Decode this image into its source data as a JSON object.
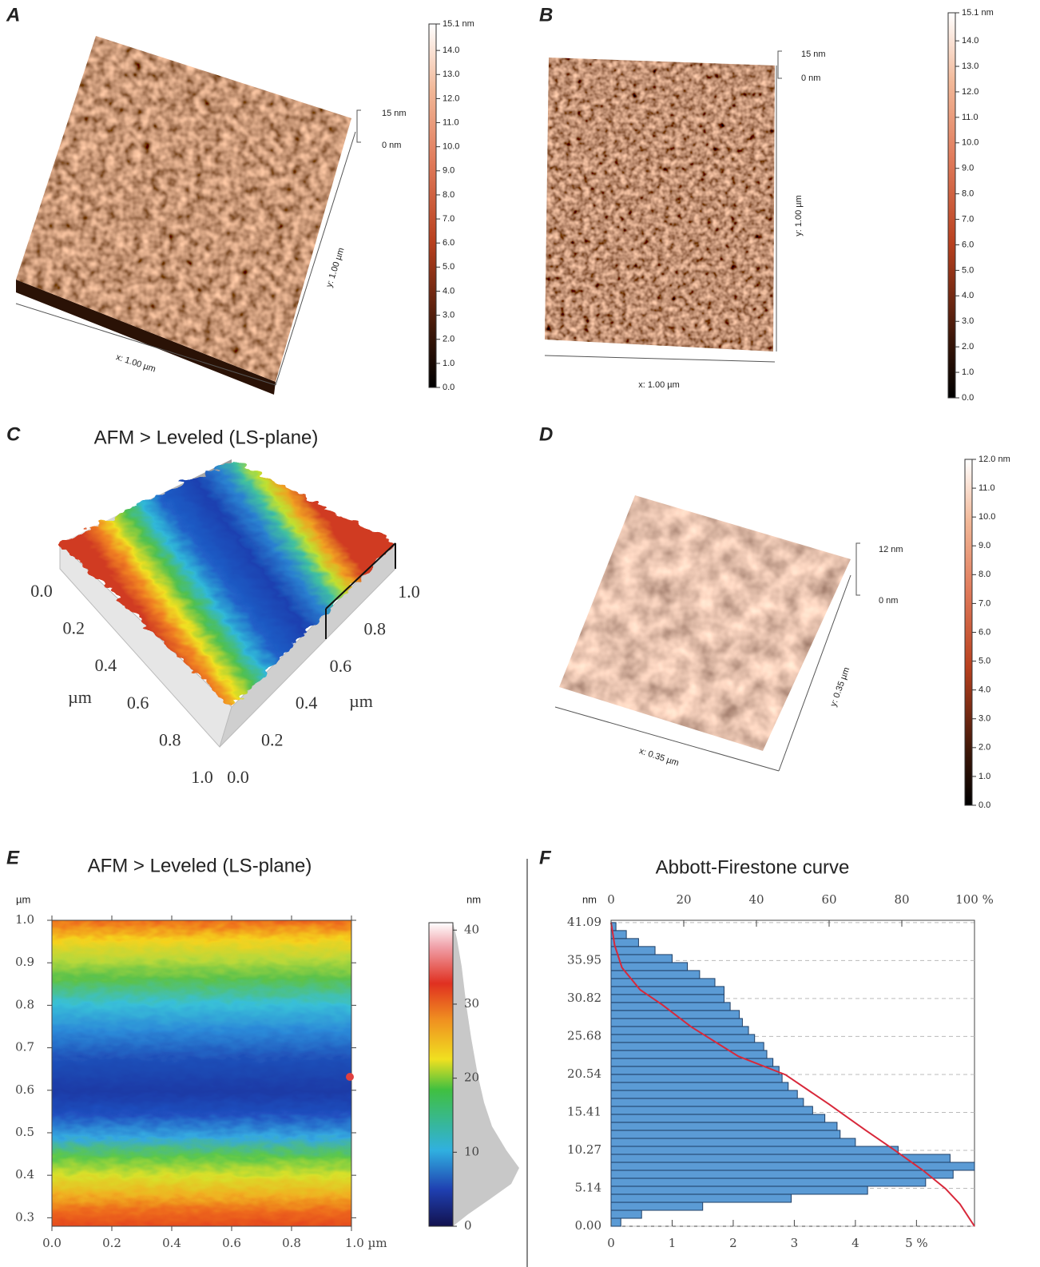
{
  "panels": {
    "A": {
      "label": "A",
      "axis_x": "x: 1.00 µm",
      "axis_y": "y: 1.00 µm",
      "scale_top": "15 nm",
      "scale_bottom": "0 nm",
      "colorbar": {
        "ticks": [
          {
            "value": 15.1,
            "label": "15.1 nm"
          },
          {
            "value": 14,
            "label": "14.0"
          },
          {
            "value": 13,
            "label": "13.0"
          },
          {
            "value": 12,
            "label": "12.0"
          },
          {
            "value": 11,
            "label": "11.0"
          },
          {
            "value": 10,
            "label": "10.0"
          },
          {
            "value": 9,
            "label": "9.0"
          },
          {
            "value": 8,
            "label": "8.0"
          },
          {
            "value": 7,
            "label": "7.0"
          },
          {
            "value": 6,
            "label": "6.0"
          },
          {
            "value": 5,
            "label": "5.0"
          },
          {
            "value": 4,
            "label": "4.0"
          },
          {
            "value": 3,
            "label": "3.0"
          },
          {
            "value": 2,
            "label": "2.0"
          },
          {
            "value": 1,
            "label": "1.0"
          },
          {
            "value": 0,
            "label": "0.0"
          }
        ]
      }
    },
    "B": {
      "label": "B",
      "axis_x": "x: 1.00 µm",
      "axis_y": "y: 1.00 µm",
      "scale_top": "15 nm",
      "scale_bottom": "0 nm",
      "colorbar": {
        "ticks": [
          {
            "value": 15.1,
            "label": "15.1 nm"
          },
          {
            "value": 14,
            "label": "14.0"
          },
          {
            "value": 13,
            "label": "13.0"
          },
          {
            "value": 12,
            "label": "12.0"
          },
          {
            "value": 11,
            "label": "11.0"
          },
          {
            "value": 10,
            "label": "10.0"
          },
          {
            "value": 9,
            "label": "9.0"
          },
          {
            "value": 8,
            "label": "8.0"
          },
          {
            "value": 7,
            "label": "7.0"
          },
          {
            "value": 6,
            "label": "6.0"
          },
          {
            "value": 5,
            "label": "5.0"
          },
          {
            "value": 4,
            "label": "4.0"
          },
          {
            "value": 3,
            "label": "3.0"
          },
          {
            "value": 2,
            "label": "2.0"
          },
          {
            "value": 1,
            "label": "1.0"
          },
          {
            "value": 0,
            "label": "0.0"
          }
        ]
      }
    },
    "C": {
      "label": "C",
      "title": "AFM > Leveled (LS-plane)",
      "left_axis": [
        "0.0",
        "0.2",
        "0.4",
        "0.6",
        "0.8",
        "1.0"
      ],
      "left_unit": "µm",
      "right_axis": [
        "0.0",
        "0.2",
        "0.4",
        "0.6",
        "0.8",
        "1.0"
      ],
      "right_unit": "µm"
    },
    "D": {
      "label": "D",
      "axis_x": "x: 0.35 µm",
      "axis_y": "y: 0.35 µm",
      "scale_top": "12 nm",
      "scale_bottom": "0 nm",
      "colorbar": {
        "ticks": [
          {
            "value": 12,
            "label": "12.0 nm"
          },
          {
            "value": 11,
            "label": "11.0"
          },
          {
            "value": 10,
            "label": "10.0"
          },
          {
            "value": 9,
            "label": "9.0"
          },
          {
            "value": 8,
            "label": "8.0"
          },
          {
            "value": 7,
            "label": "7.0"
          },
          {
            "value": 6,
            "label": "6.0"
          },
          {
            "value": 5,
            "label": "5.0"
          },
          {
            "value": 4,
            "label": "4.0"
          },
          {
            "value": 3,
            "label": "3.0"
          },
          {
            "value": 2,
            "label": "2.0"
          },
          {
            "value": 1,
            "label": "1.0"
          },
          {
            "value": 0,
            "label": "0.0"
          }
        ]
      }
    },
    "E": {
      "label": "E",
      "title": "AFM > Leveled (LS-plane)",
      "y_unit": "µm",
      "xlim": [
        0,
        1
      ],
      "xticks": [
        {
          "value": 0,
          "label": "0.0"
        },
        0.2,
        0.4,
        0.6,
        0.8,
        {
          "value": 1,
          "label": "1.0 µm"
        }
      ],
      "ylim": [
        0.28,
        1
      ],
      "yticks": [
        {
          "value": 1,
          "label": "1.0"
        },
        0.9,
        0.8,
        0.7,
        0.6,
        0.5,
        0.4,
        0.3
      ],
      "colorbar": {
        "unit": "nm",
        "range": [
          0,
          41
        ],
        "ticks": [
          40,
          30,
          20,
          10,
          0
        ]
      }
    },
    "F": {
      "label": "F",
      "title": "Abbott-Firestone curve",
      "y_unit": "nm",
      "ylim": [
        0,
        41.4
      ],
      "yticks": [
        41.09,
        35.95,
        30.82,
        25.68,
        20.54,
        15.41,
        10.27,
        5.14,
        {
          "value": 0,
          "label": "0.00"
        }
      ],
      "top_lim": [
        0,
        100
      ],
      "top_ticks": [
        0,
        20,
        40,
        60,
        80,
        {
          "value": 100,
          "label": "100 %"
        }
      ],
      "bottom_lim": [
        0,
        5.95
      ],
      "bottom_ticks": [
        0,
        1,
        2,
        3,
        4,
        {
          "value": 5,
          "label": "5 %"
        }
      ],
      "bins": [
        0,
        1.08,
        2.16,
        3.24,
        4.33,
        5.41,
        6.49,
        7.57,
        8.65,
        9.73,
        10.81,
        11.89,
        12.98,
        14.06,
        15.14,
        16.22,
        17.3,
        18.38,
        19.46,
        20.55,
        21.63,
        22.71,
        23.79,
        24.87,
        25.95,
        27.03,
        28.11,
        29.2,
        30.28,
        31.36,
        32.44,
        33.52,
        34.6,
        35.68,
        36.76,
        37.85,
        38.93,
        40.01,
        41.09
      ],
      "values": [
        0.16,
        0.5,
        1.5,
        2.95,
        4.2,
        5.15,
        5.6,
        5.95,
        5.55,
        4.7,
        4.0,
        3.75,
        3.7,
        3.5,
        3.3,
        3.15,
        3.05,
        2.9,
        2.8,
        2.75,
        2.65,
        2.55,
        2.5,
        2.35,
        2.25,
        2.15,
        2.1,
        1.95,
        1.85,
        1.85,
        1.7,
        1.45,
        1.25,
        1.0,
        0.72,
        0.45,
        0.25,
        0.08
      ],
      "curve": {
        "x": [
          0,
          1,
          3,
          8,
          14,
          22,
          35,
          48,
          60,
          70,
          78,
          86,
          92,
          96,
          100
        ],
        "y": [
          41.09,
          38,
          35,
          32,
          30,
          27,
          23,
          20.5,
          16.5,
          13,
          10.3,
          7.5,
          5.1,
          3,
          0
        ]
      }
    }
  }
}
